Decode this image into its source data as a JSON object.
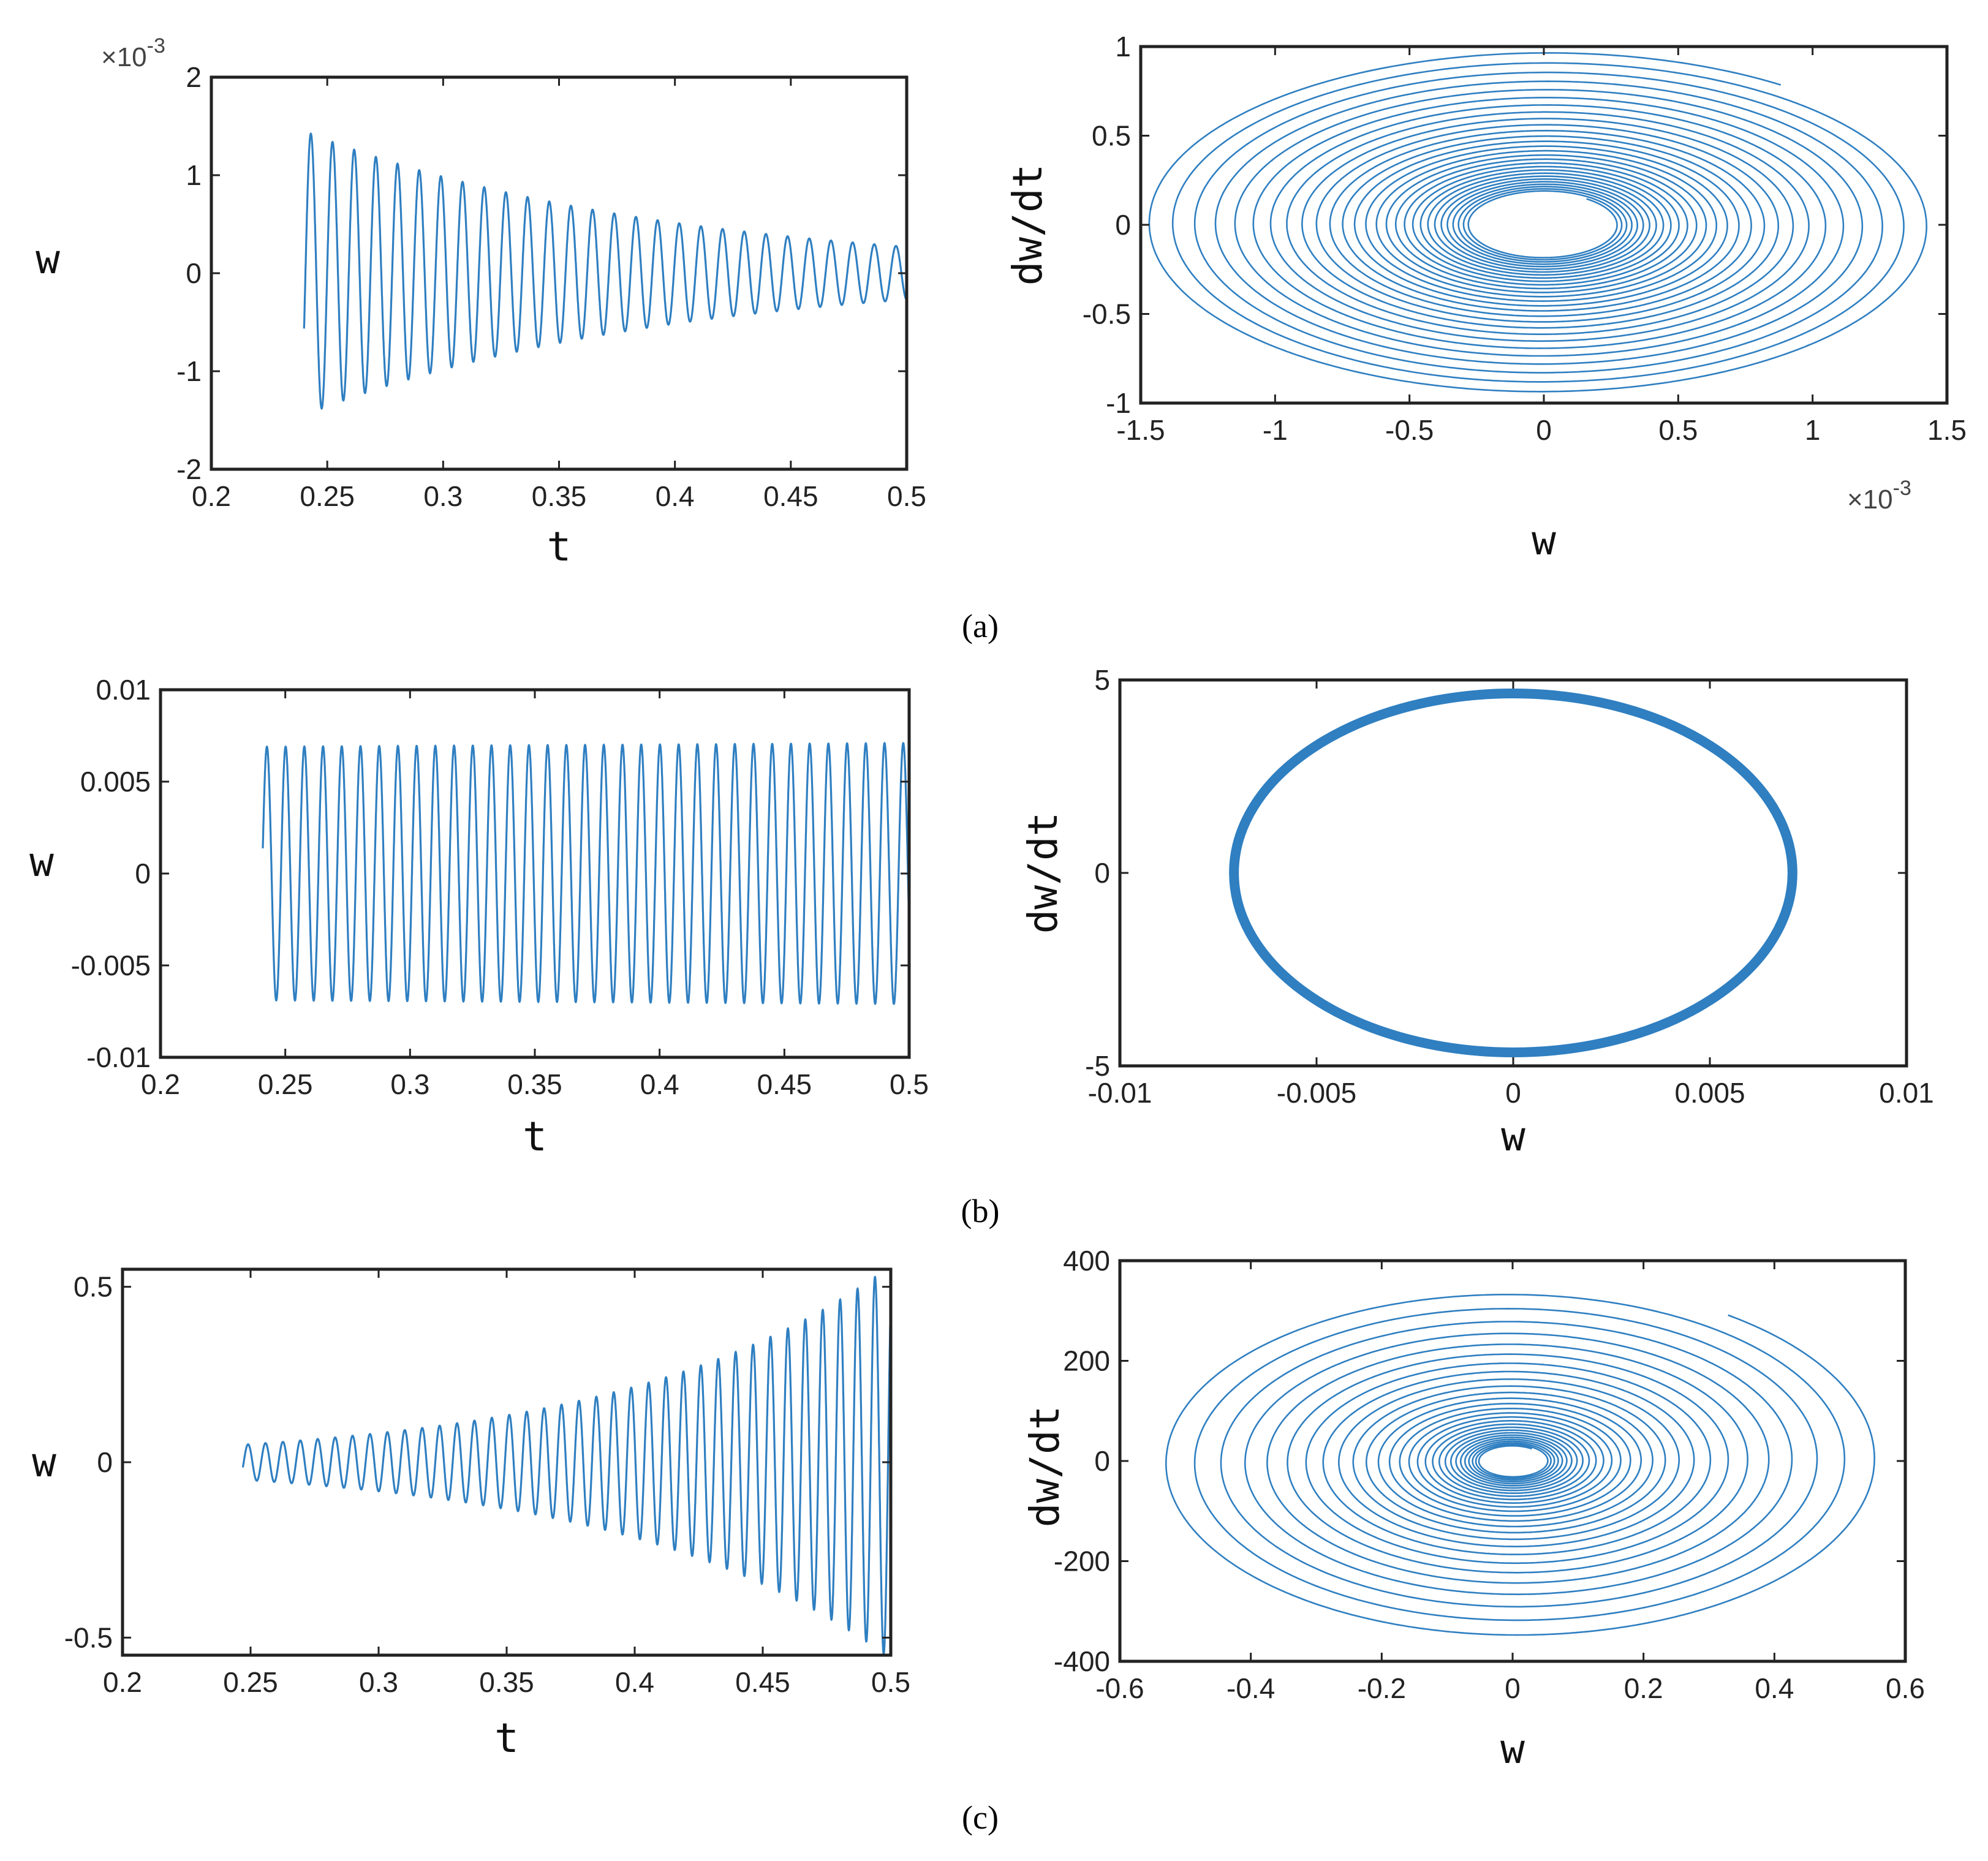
{
  "captions": {
    "a": "(a)",
    "b": "(b)",
    "c": "(c)"
  },
  "colors": {
    "line": "#2f7fc1",
    "frame": "#222222",
    "text": "#222222"
  },
  "chart_data": [
    {
      "id": "a-time",
      "type": "line",
      "panel": "a",
      "title": "",
      "xlabel": "t",
      "ylabel": "w",
      "multiplier": "×10-3",
      "xlim": [
        0.2,
        0.5
      ],
      "ylim": [
        -2,
        2
      ],
      "xticks": [
        0.2,
        0.25,
        0.3,
        0.35,
        0.4,
        0.45,
        0.5
      ],
      "xtick_labels": [
        "0.2",
        "0.25",
        "0.3",
        "0.35",
        "0.4",
        "0.45",
        "0.5"
      ],
      "yticks": [
        -2,
        -1,
        0,
        1,
        2
      ],
      "ytick_labels": [
        "-2",
        "-1",
        "0",
        "1",
        "2"
      ],
      "series": [
        {
          "name": "w(t)",
          "kind": "damped oscillation",
          "t_start": 0.24,
          "t_end": 0.5,
          "amplitude_start": 1.45,
          "amplitude_end": 0.27,
          "period": 0.00935,
          "phase": -0.4
        }
      ]
    },
    {
      "id": "a-phase",
      "type": "line",
      "panel": "a",
      "title": "",
      "xlabel": "w",
      "ylabel": "dw/dt",
      "multiplier": "×10-3",
      "xlim": [
        -1.5,
        1.5
      ],
      "ylim": [
        -1,
        1
      ],
      "xticks": [
        -1.5,
        -1,
        -0.5,
        0,
        0.5,
        1,
        1.5
      ],
      "xtick_labels": [
        "-1.5",
        "-1",
        "-0.5",
        "0",
        "0.5",
        "1",
        "1.5"
      ],
      "yticks": [
        -1,
        -0.5,
        0,
        0.5,
        1
      ],
      "ytick_labels": [
        "-1",
        "-0.5",
        "0",
        "0.5",
        "1"
      ],
      "series": [
        {
          "name": "phase trajectory",
          "kind": "inward spiral",
          "turns": 28,
          "a_outer": 1.5,
          "b_outer": 0.97,
          "a_inner": 0.27,
          "b_inner": 0.18
        }
      ]
    },
    {
      "id": "b-time",
      "type": "line",
      "panel": "b",
      "title": "",
      "xlabel": "t",
      "ylabel": "w",
      "multiplier": "",
      "xlim": [
        0.2,
        0.5
      ],
      "ylim": [
        -0.01,
        0.01
      ],
      "xticks": [
        0.2,
        0.25,
        0.3,
        0.35,
        0.4,
        0.45,
        0.5
      ],
      "xtick_labels": [
        "0.2",
        "0.25",
        "0.3",
        "0.35",
        "0.4",
        "0.45",
        "0.5"
      ],
      "yticks": [
        -0.01,
        -0.005,
        0,
        0.005,
        0.01
      ],
      "ytick_labels": [
        "-0.01",
        "-0.005",
        "0",
        "0.005",
        "0.01"
      ],
      "series": [
        {
          "name": "w(t)",
          "kind": "steady oscillation",
          "t_start": 0.241,
          "t_end": 0.5,
          "amplitude_start": 0.0069,
          "amplitude_end": 0.0071,
          "period": 0.0075,
          "phase": 0.2
        }
      ]
    },
    {
      "id": "b-phase",
      "type": "line",
      "panel": "b",
      "title": "",
      "xlabel": "w",
      "ylabel": "dw/dt",
      "multiplier": "",
      "xlim": [
        -0.01,
        0.01
      ],
      "ylim": [
        -5,
        5
      ],
      "xticks": [
        -0.01,
        -0.005,
        0,
        0.005,
        0.01
      ],
      "xtick_labels": [
        "-0.01",
        "-0.005",
        "0",
        "0.005",
        "0.01"
      ],
      "yticks": [
        -5,
        0,
        5
      ],
      "ytick_labels": [
        "-5",
        "0",
        "5"
      ],
      "series": [
        {
          "name": "phase trajectory",
          "kind": "limit cycle",
          "a": 0.0071,
          "b": 4.65
        }
      ]
    },
    {
      "id": "c-time",
      "type": "line",
      "panel": "c",
      "title": "",
      "xlabel": "t",
      "ylabel": "w",
      "multiplier": "",
      "xlim": [
        0.2,
        0.5
      ],
      "ylim": [
        -0.55,
        0.55
      ],
      "xticks": [
        0.2,
        0.25,
        0.3,
        0.35,
        0.4,
        0.45,
        0.5
      ],
      "xtick_labels": [
        "0.2",
        "0.25",
        "0.3",
        "0.35",
        "0.4",
        "0.45",
        "0.5"
      ],
      "yticks": [
        -0.5,
        0,
        0.5
      ],
      "ytick_labels": [
        "-0.5",
        "0",
        "0.5"
      ],
      "series": [
        {
          "name": "w(t)",
          "kind": "growing oscillation",
          "t_start": 0.247,
          "t_end": 0.5,
          "amplitude_start": 0.05,
          "amplitude_end": 0.56,
          "period": 0.0068,
          "phase": -0.3
        }
      ]
    },
    {
      "id": "c-phase",
      "type": "line",
      "panel": "c",
      "title": "",
      "xlabel": "w",
      "ylabel": "dw/dt",
      "multiplier": "",
      "xlim": [
        -0.6,
        0.6
      ],
      "ylim": [
        -400,
        400
      ],
      "xticks": [
        -0.6,
        -0.4,
        -0.2,
        0,
        0.2,
        0.4,
        0.6
      ],
      "xtick_labels": [
        "-0.6",
        "-0.4",
        "-0.2",
        "0",
        "0.2",
        "0.4",
        "0.6"
      ],
      "yticks": [
        -400,
        -200,
        0,
        200,
        400
      ],
      "ytick_labels": [
        "-400",
        "-200",
        "0",
        "200",
        "400"
      ],
      "series": [
        {
          "name": "phase trajectory",
          "kind": "outward spiral",
          "turns": 28,
          "a_outer": 0.56,
          "b_outer": 360,
          "a_inner": 0.05,
          "b_inner": 30
        }
      ]
    }
  ]
}
